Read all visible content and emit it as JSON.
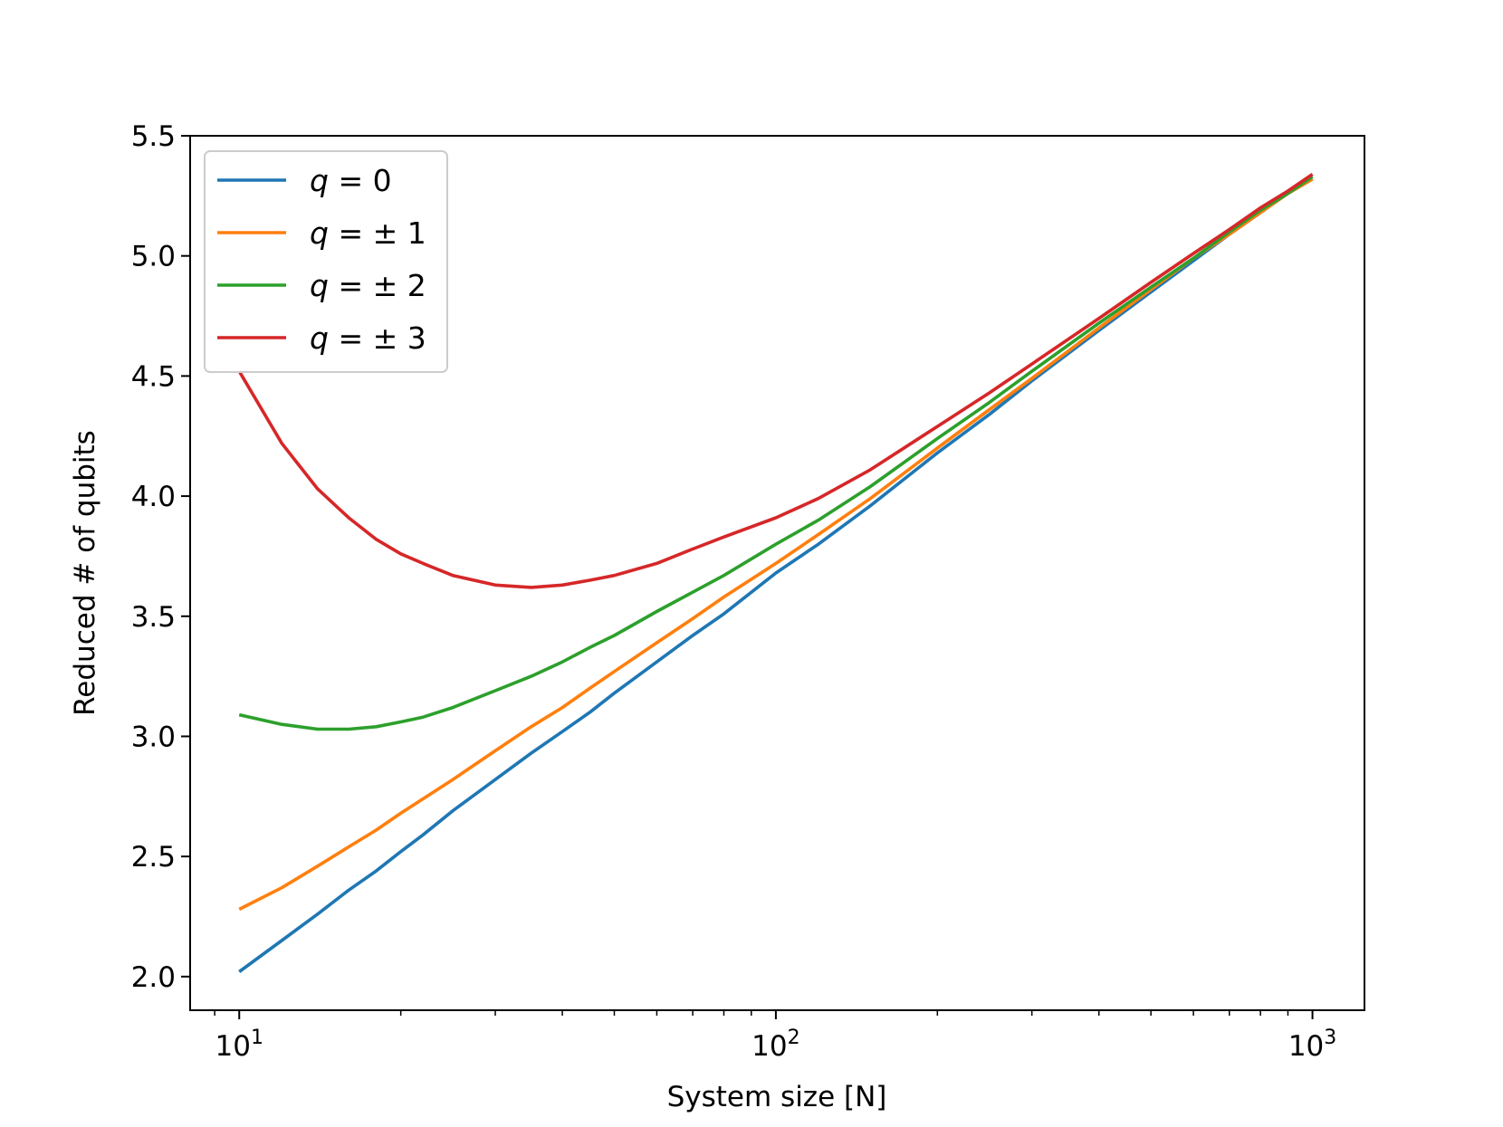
{
  "chart_data": {
    "type": "line",
    "xlabel": "System size [N]",
    "ylabel": "Reduced # of qubits",
    "xscale": "log",
    "xlim": [
      8.1,
      1250
    ],
    "ylim": [
      1.86,
      5.5
    ],
    "x_tick_labels": [
      {
        "base": "10",
        "exp": "1",
        "value": 10
      },
      {
        "base": "10",
        "exp": "2",
        "value": 100
      },
      {
        "base": "10",
        "exp": "3",
        "value": 1000
      }
    ],
    "y_ticks": [
      2.0,
      2.5,
      3.0,
      3.5,
      4.0,
      4.5,
      5.0,
      5.5
    ],
    "y_tick_labels": [
      "2.0",
      "2.5",
      "3.0",
      "3.5",
      "4.0",
      "4.5",
      "5.0",
      "5.5"
    ],
    "legend_position": "upper-left",
    "grid": false,
    "x": [
      10,
      12,
      14,
      16,
      18,
      20,
      22,
      25,
      30,
      35,
      40,
      45,
      50,
      60,
      70,
      80,
      100,
      120,
      150,
      200,
      250,
      300,
      400,
      500,
      600,
      700,
      800,
      900,
      1000
    ],
    "series": [
      {
        "name": "q = 0",
        "label_main": "q",
        "label_rest": " = 0",
        "color": "#1f77b4",
        "values": [
          2.02,
          2.15,
          2.26,
          2.36,
          2.44,
          2.52,
          2.59,
          2.69,
          2.82,
          2.93,
          3.02,
          3.1,
          3.18,
          3.31,
          3.42,
          3.51,
          3.68,
          3.8,
          3.96,
          4.18,
          4.34,
          4.48,
          4.69,
          4.85,
          4.98,
          5.09,
          5.18,
          5.26,
          5.32
        ]
      },
      {
        "name": "q = ±1",
        "label_main": "q",
        "label_rest": " =  ± 1",
        "color": "#ff7f0e",
        "values": [
          2.28,
          2.37,
          2.46,
          2.54,
          2.61,
          2.68,
          2.74,
          2.82,
          2.94,
          3.04,
          3.12,
          3.2,
          3.27,
          3.39,
          3.49,
          3.58,
          3.72,
          3.84,
          3.99,
          4.2,
          4.36,
          4.49,
          4.7,
          4.86,
          4.99,
          5.09,
          5.18,
          5.26,
          5.32
        ]
      },
      {
        "name": "q = ±2",
        "label_main": "q",
        "label_rest": " =  ± 2",
        "color": "#2ca02c",
        "values": [
          3.09,
          3.05,
          3.03,
          3.03,
          3.04,
          3.06,
          3.08,
          3.12,
          3.19,
          3.25,
          3.31,
          3.37,
          3.42,
          3.52,
          3.6,
          3.67,
          3.8,
          3.9,
          4.04,
          4.24,
          4.39,
          4.52,
          4.72,
          4.87,
          4.99,
          5.1,
          5.19,
          5.26,
          5.33
        ]
      },
      {
        "name": "q = ±3",
        "label_main": "q",
        "label_rest": " =  ± 3",
        "color": "#d62728",
        "values": [
          4.52,
          4.22,
          4.03,
          3.91,
          3.82,
          3.76,
          3.72,
          3.67,
          3.63,
          3.62,
          3.63,
          3.65,
          3.67,
          3.72,
          3.78,
          3.83,
          3.91,
          3.99,
          4.11,
          4.29,
          4.43,
          4.55,
          4.74,
          4.89,
          5.01,
          5.11,
          5.2,
          5.27,
          5.34
        ]
      }
    ]
  }
}
